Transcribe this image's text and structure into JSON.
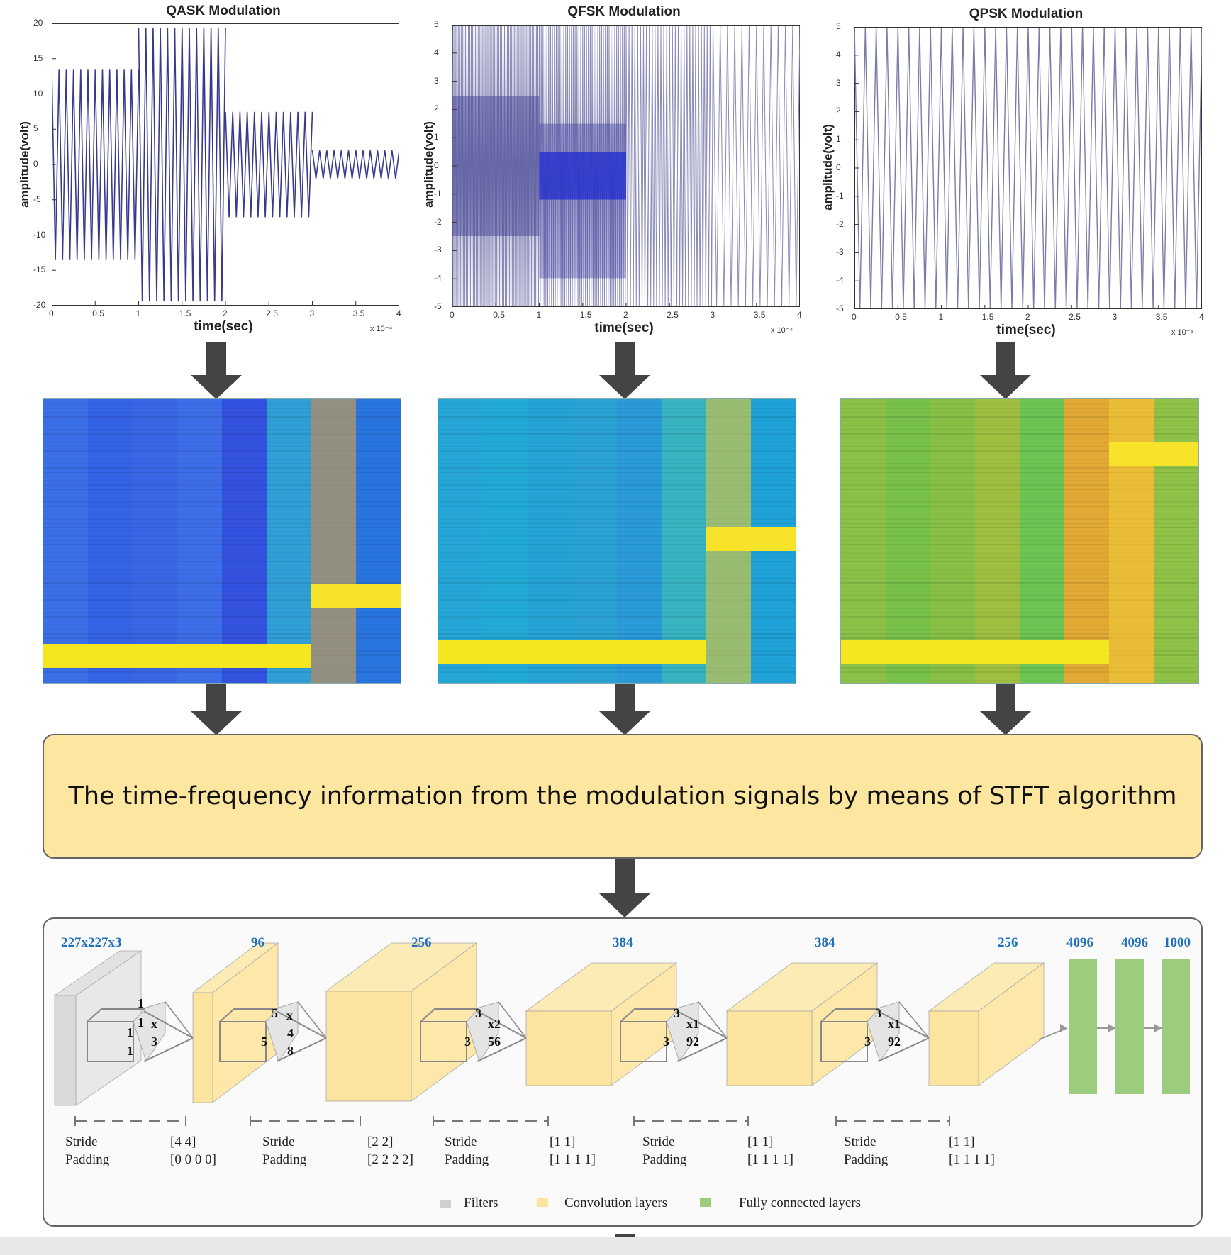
{
  "plots": [
    {
      "title": "QASK Modulation",
      "xlabel": "time(sec)",
      "ylabel": "amplitude(volt)",
      "yticks": [
        "20",
        "15",
        "10",
        "5",
        "0",
        "-5",
        "-10",
        "-15",
        "-20"
      ],
      "xticks": [
        "0",
        "0.5",
        "1",
        "1.5",
        "2",
        "2.5",
        "3",
        "3.5",
        "4"
      ],
      "exponent": "x 10⁻⁴",
      "ylim": [
        -20,
        20
      ],
      "segments": [
        13.5,
        19.5,
        7.5,
        2
      ]
    },
    {
      "title": "QFSK Modulation",
      "xlabel": "time(sec)",
      "ylabel": "amplitude(volt)",
      "yticks": [
        "5",
        "4",
        "3",
        "2",
        "1",
        "0",
        "-1",
        "-2",
        "-3",
        "-4",
        "-5"
      ],
      "xticks": [
        "0",
        "0.5",
        "1",
        "1.5",
        "2",
        "2.5",
        "3",
        "3.5",
        "4"
      ],
      "exponent": "x 10⁻⁴",
      "ylim": [
        -5,
        5
      ]
    },
    {
      "title": "QPSK Modulation",
      "xlabel": "time(sec)",
      "ylabel": "amplitude(volt)",
      "yticks": [
        "5",
        "4",
        "3",
        "2",
        "1",
        "0",
        "-1",
        "-2",
        "-3",
        "-4",
        "-5"
      ],
      "xticks": [
        "0",
        "0.5",
        "1",
        "1.5",
        "2",
        "2.5",
        "3",
        "3.5",
        "4"
      ],
      "exponent": "x 10⁻⁴",
      "ylim": [
        -5,
        5
      ]
    }
  ],
  "stft_text": "The time-frequency information from the modulation signals by means of STFT algorithm",
  "cnn": {
    "layer_sizes": [
      "227x227x3",
      "96",
      "256",
      "384",
      "384",
      "256",
      "4096",
      "4096",
      "1000"
    ],
    "kernels": [
      {
        "a": "1",
        "b": "1",
        "c": "1",
        "d": "x",
        "e": "3"
      },
      {
        "a": "5",
        "b": "5",
        "c": "x",
        "d": "4",
        "e": "8"
      },
      {
        "a": "3",
        "b": "3",
        "c": "x2",
        "d": "56"
      },
      {
        "a": "3",
        "b": "3",
        "c": "x1",
        "d": "92"
      },
      {
        "a": "3",
        "b": "3",
        "c": "x1",
        "d": "92"
      }
    ],
    "stride_label": "Stride",
    "padding_label": "Padding",
    "params": [
      {
        "stride": "[4 4]",
        "padding": "[0 0 0 0]"
      },
      {
        "stride": "[2 2]",
        "padding": "[2 2 2 2]"
      },
      {
        "stride": "[1 1]",
        "padding": "[1 1 1 1]"
      },
      {
        "stride": "[1 1]",
        "padding": "[1 1 1 1]"
      },
      {
        "stride": "[1 1]",
        "padding": "[1 1 1 1]"
      }
    ],
    "legend": [
      "Filters",
      "Convolution layers",
      "Fully connected layers"
    ]
  },
  "colors": {
    "conv": "#fde49e",
    "filter": "#e4e4e4",
    "fc": "#9ccc7e",
    "arrow": "#444444",
    "label_blue": "#1f6fbf",
    "stft_box": "#fde6a0"
  }
}
